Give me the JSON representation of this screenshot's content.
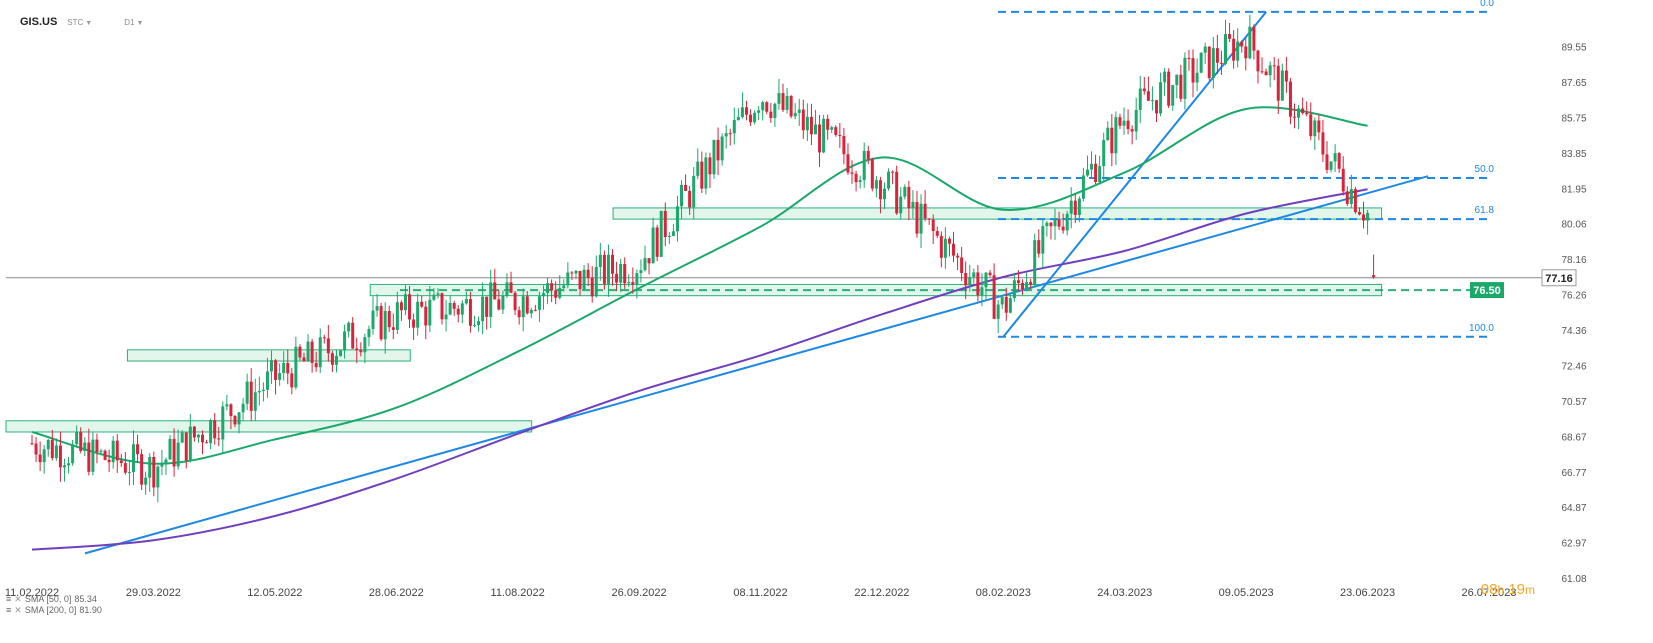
{
  "header": {
    "symbol": "GIS.US",
    "source": "STC",
    "interval": "D1"
  },
  "indicators": [
    {
      "label": "SMA [50, 0]",
      "value": "85.34",
      "color": "#1aa86b"
    },
    {
      "label": "SMA [200, 0]",
      "value": "81.90",
      "color": "#6f3fbf"
    }
  ],
  "timer": {
    "hours": "08",
    "h": "h",
    "minutes": "19",
    "m": "m"
  },
  "current_price": {
    "label": "77.16"
  },
  "level_price": {
    "label": "76.50"
  },
  "fib_labels": [
    "0.0",
    "50.0",
    "61.8",
    "100.0"
  ],
  "colors": {
    "up": "#1aa86b",
    "down": "#d9233b",
    "sma50": "#1aa86b",
    "sma200": "#6f3fbf",
    "trend": "#1e88e5",
    "zone_fill": "#d6f2e4",
    "zone_stroke": "#2bb07a",
    "price_badge": "#1aa86b"
  },
  "chart_data": {
    "type": "candlestick",
    "y_ticks": [
      "89.55",
      "87.65",
      "85.75",
      "83.85",
      "81.95",
      "80.06",
      "78.16",
      "76.26",
      "74.36",
      "72.46",
      "70.57",
      "68.67",
      "66.77",
      "64.87",
      "62.97",
      "61.08"
    ],
    "ylim": [
      61.08,
      91.5
    ],
    "x_ticks": [
      "11.02.2022",
      "29.03.2022",
      "12.05.2022",
      "28.06.2022",
      "11.08.2022",
      "26.09.2022",
      "08.11.2022",
      "22.12.2022",
      "08.02.2023",
      "24.03.2023",
      "09.05.2023",
      "23.06.2023",
      "26.07.2023"
    ],
    "trend_lines": [
      {
        "from": [
          "11.02.2022",
          62.4
        ],
        "to": [
          "26.07.2023",
          82.6
        ]
      },
      {
        "from": [
          "08.02.2023",
          74.0
        ],
        "to": [
          "09.05.2023",
          91.4
        ]
      }
    ],
    "fib_levels": [
      {
        "label": "0.0",
        "price": 91.4
      },
      {
        "label": "50.0",
        "price": 82.5
      },
      {
        "label": "61.8",
        "price": 80.3
      },
      {
        "label": "100.0",
        "price": 74.0
      }
    ],
    "horizontal_levels": [
      {
        "label": "76.50",
        "price": 76.5,
        "style": "dashed"
      },
      {
        "label": "77.16",
        "price": 77.16,
        "style": "solid"
      }
    ],
    "support_zones": [
      {
        "from": "11.02.2022",
        "to": "11.08.2022",
        "top": 69.5,
        "bottom": 68.9
      },
      {
        "from": "29.03.2022",
        "to": "28.06.2022",
        "top": 73.3,
        "bottom": 72.7
      },
      {
        "from": "28.06.2022",
        "to": "23.06.2023",
        "top": 76.8,
        "bottom": 76.2
      },
      {
        "from": "26.09.2022",
        "to": "23.06.2023",
        "top": 80.9,
        "bottom": 80.3
      }
    ],
    "sma50": [
      {
        "x": "11.02.2022",
        "y": 68.9
      },
      {
        "x": "29.03.2022",
        "y": 67.2
      },
      {
        "x": "12.05.2022",
        "y": 68.5
      },
      {
        "x": "28.06.2022",
        "y": 70.2
      },
      {
        "x": "11.08.2022",
        "y": 73.2
      },
      {
        "x": "26.09.2022",
        "y": 76.6
      },
      {
        "x": "08.11.2022",
        "y": 79.9
      },
      {
        "x": "22.12.2022",
        "y": 83.6
      },
      {
        "x": "08.02.2023",
        "y": 80.8
      },
      {
        "x": "24.03.2023",
        "y": 82.8
      },
      {
        "x": "09.05.2023",
        "y": 86.2
      },
      {
        "x": "23.06.2023",
        "y": 85.3
      }
    ],
    "sma200": [
      {
        "x": "11.02.2022",
        "y": 62.6
      },
      {
        "x": "29.03.2022",
        "y": 63.1
      },
      {
        "x": "12.05.2022",
        "y": 64.4
      },
      {
        "x": "28.06.2022",
        "y": 66.4
      },
      {
        "x": "11.08.2022",
        "y": 68.8
      },
      {
        "x": "26.09.2022",
        "y": 71.1
      },
      {
        "x": "08.11.2022",
        "y": 73.0
      },
      {
        "x": "22.12.2022",
        "y": 75.2
      },
      {
        "x": "08.02.2023",
        "y": 77.2
      },
      {
        "x": "24.03.2023",
        "y": 78.6
      },
      {
        "x": "09.05.2023",
        "y": 80.6
      },
      {
        "x": "23.06.2023",
        "y": 81.9
      }
    ],
    "price_path": [
      {
        "x": "11.02.2022",
        "y": 68.3
      },
      {
        "x": "29.03.2022",
        "y": 67.0
      },
      {
        "x": "12.05.2022",
        "y": 71.8
      },
      {
        "x": "28.06.2022",
        "y": 75.2
      },
      {
        "x": "11.08.2022",
        "y": 76.0
      },
      {
        "x": "26.09.2022",
        "y": 78.0
      },
      {
        "x": "08.11.2022",
        "y": 87.0
      },
      {
        "x": "22.12.2022",
        "y": 82.4
      },
      {
        "x": "08.02.2023",
        "y": 75.5
      },
      {
        "x": "24.03.2023",
        "y": 85.8
      },
      {
        "x": "09.05.2023",
        "y": 90.0
      },
      {
        "x": "23.06.2023",
        "y": 80.6
      }
    ]
  }
}
